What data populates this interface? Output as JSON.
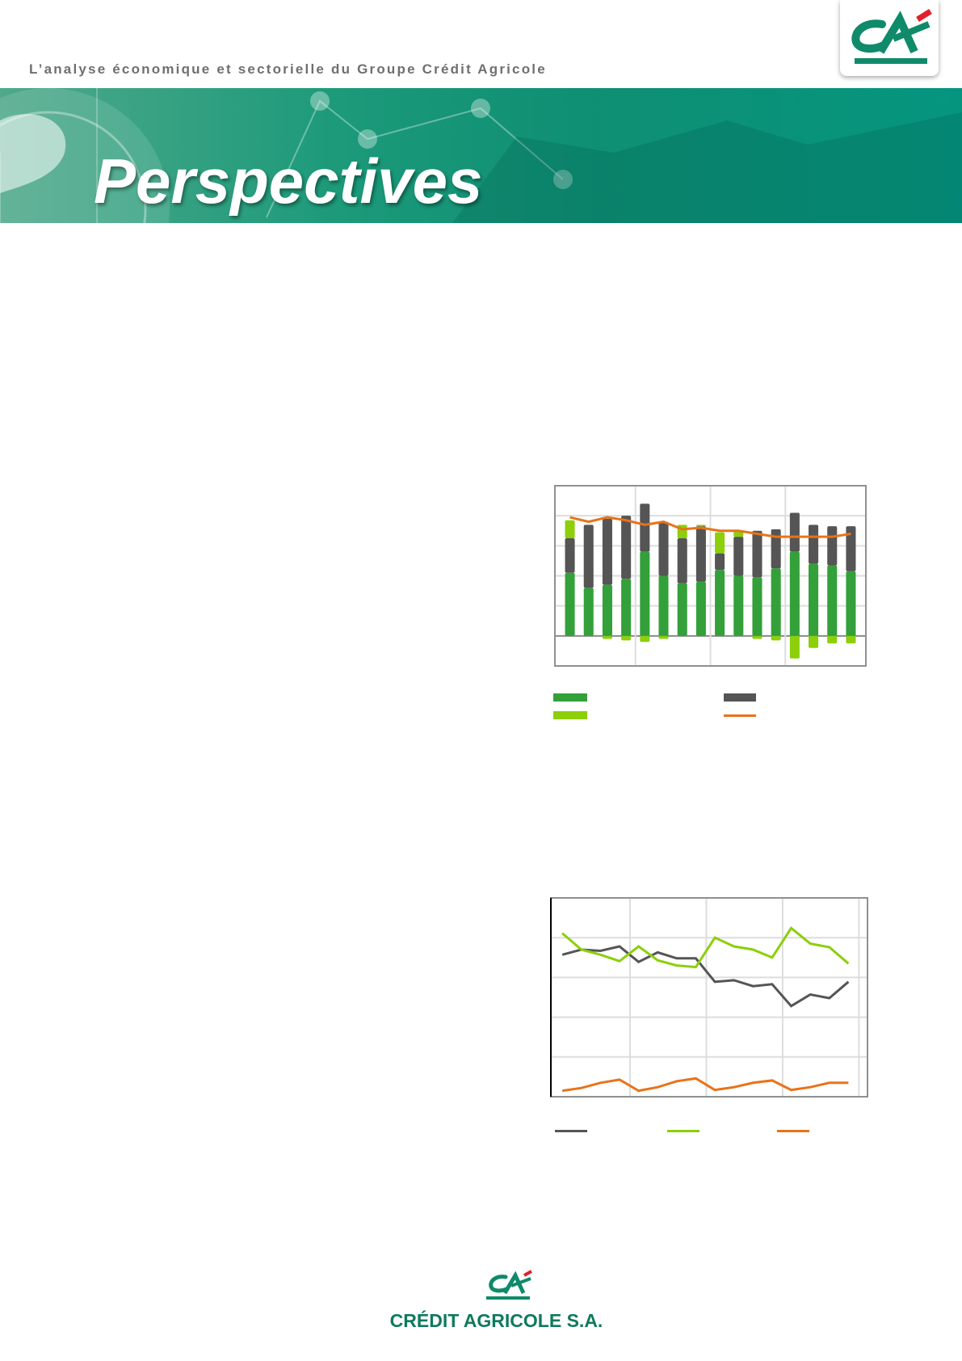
{
  "header": {
    "tagline": "L’analyse économique et sectorielle du Groupe Crédit Agricole",
    "banner_title": "Perspectives",
    "logo_text": "CA"
  },
  "footer": {
    "brand": "CRÉDIT AGRICOLE S.A.",
    "logo_text": "CA"
  },
  "colors": {
    "brand_green": "#0f7a5c",
    "dark_green": "#33a03a",
    "light_green": "#8ccf0a",
    "dark_gray": "#555555",
    "orange": "#e8731a"
  },
  "chart_data": [
    {
      "type": "bar",
      "stacked": true,
      "grid": true,
      "ylim": [
        -1,
        5
      ],
      "series": [
        {
          "kind": "bar",
          "color": "#33a03a",
          "values": [
            2.1,
            1.6,
            1.7,
            1.9,
            2.8,
            2.0,
            1.75,
            1.8,
            2.2,
            2.0,
            1.95,
            2.25,
            2.8,
            2.4,
            2.35,
            2.15
          ]
        },
        {
          "kind": "bar",
          "color": "#555555",
          "values": [
            1.15,
            2.1,
            2.2,
            2.1,
            1.6,
            1.8,
            1.5,
            1.85,
            0.55,
            1.3,
            1.55,
            1.3,
            1.3,
            1.3,
            1.3,
            1.5
          ]
        },
        {
          "kind": "bar",
          "color": "#8ccf0a",
          "values": [
            0.6,
            0,
            -0.1,
            -0.15,
            -0.2,
            -0.1,
            0.45,
            0.05,
            0.7,
            0.2,
            -0.1,
            -0.15,
            -0.75,
            -0.4,
            -0.25,
            -0.25
          ]
        },
        {
          "kind": "line",
          "color": "#e8731a",
          "values": [
            3.95,
            3.8,
            3.95,
            3.85,
            3.7,
            3.8,
            3.55,
            3.6,
            3.5,
            3.5,
            3.4,
            3.3,
            3.3,
            3.3,
            3.3,
            3.4
          ]
        }
      ],
      "legend": "bottom"
    },
    {
      "type": "line",
      "grid": true,
      "ylim": [
        0,
        5
      ],
      "series": [
        {
          "color": "#555555",
          "values": [
            3.57,
            3.7,
            3.67,
            3.78,
            3.39,
            3.63,
            3.48,
            3.48,
            2.89,
            2.93,
            2.78,
            2.83,
            2.28,
            2.57,
            2.48,
            2.89
          ]
        },
        {
          "color": "#8ccf0a",
          "values": [
            4.11,
            3.7,
            3.57,
            3.41,
            3.78,
            3.43,
            3.3,
            3.26,
            4.0,
            3.78,
            3.7,
            3.5,
            4.24,
            3.85,
            3.76,
            3.35
          ]
        },
        {
          "color": "#e8731a",
          "values": [
            0.15,
            0.22,
            0.35,
            0.43,
            0.15,
            0.24,
            0.39,
            0.46,
            0.17,
            0.24,
            0.35,
            0.41,
            0.17,
            0.24,
            0.35,
            0.35
          ]
        }
      ],
      "legend": "bottom"
    }
  ]
}
